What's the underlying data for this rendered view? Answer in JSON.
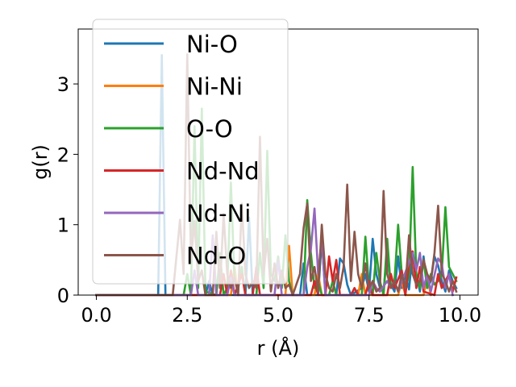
{
  "chart_data": {
    "type": "line",
    "xlabel": "r (Å)",
    "ylabel": "g(r)",
    "xlim": [
      -0.5,
      10.5
    ],
    "ylim": [
      0,
      3.78
    ],
    "xticks": [
      0.0,
      2.5,
      5.0,
      7.5,
      10.0
    ],
    "xtick_labels": [
      "0.0",
      "2.5",
      "5.0",
      "7.5",
      "10.0"
    ],
    "yticks": [
      0,
      1,
      2,
      3
    ],
    "ytick_labels": [
      "0",
      "1",
      "2",
      "3"
    ],
    "grid": false,
    "legend_position": "top-left",
    "series": [
      {
        "name": "Ni-O",
        "color": "#1f77b4",
        "points": [
          [
            0.0,
            0
          ],
          [
            1.7,
            0
          ],
          [
            1.8,
            3.41
          ],
          [
            1.9,
            0
          ],
          [
            3.0,
            0
          ],
          [
            3.1,
            0.2
          ],
          [
            3.2,
            0
          ],
          [
            4.1,
            0
          ],
          [
            4.2,
            1.1
          ],
          [
            4.3,
            0
          ],
          [
            5.6,
            0
          ],
          [
            5.7,
            0.45
          ],
          [
            5.8,
            0
          ],
          [
            6.1,
            0
          ],
          [
            6.2,
            0.8
          ],
          [
            6.3,
            0
          ],
          [
            6.6,
            0
          ],
          [
            6.7,
            0.52
          ],
          [
            6.8,
            0.45
          ],
          [
            6.9,
            0.15
          ],
          [
            7.0,
            0
          ],
          [
            7.3,
            0.1
          ],
          [
            7.4,
            0.3
          ],
          [
            7.5,
            0.05
          ],
          [
            7.6,
            0.8
          ],
          [
            7.7,
            0.3
          ],
          [
            7.8,
            0.1
          ],
          [
            7.9,
            0.05
          ],
          [
            8.0,
            0.62
          ],
          [
            8.1,
            0.15
          ],
          [
            8.2,
            0.05
          ],
          [
            8.3,
            0.55
          ],
          [
            8.4,
            0.1
          ],
          [
            8.5,
            0.3
          ],
          [
            8.6,
            0.08
          ],
          [
            8.7,
            0.62
          ],
          [
            8.8,
            0.3
          ],
          [
            8.9,
            0.05
          ],
          [
            9.0,
            0.55
          ],
          [
            9.1,
            0.1
          ],
          [
            9.2,
            0.2
          ],
          [
            9.3,
            0.55
          ],
          [
            9.4,
            0.42
          ],
          [
            9.5,
            0.2
          ],
          [
            9.6,
            0.05
          ],
          [
            9.7,
            0.35
          ],
          [
            9.8,
            0.2
          ],
          [
            9.9,
            0.1
          ]
        ]
      },
      {
        "name": "Ni-Ni",
        "color": "#ff7f0e",
        "points": [
          [
            0.0,
            0
          ],
          [
            3.7,
            0
          ],
          [
            3.8,
            0.4
          ],
          [
            3.9,
            0
          ],
          [
            5.2,
            0
          ],
          [
            5.3,
            0.7
          ],
          [
            5.4,
            0
          ],
          [
            6.0,
            0
          ],
          [
            6.1,
            0.3
          ],
          [
            6.2,
            0
          ],
          [
            7.2,
            0
          ],
          [
            7.3,
            0.3
          ],
          [
            7.4,
            0
          ],
          [
            8.3,
            0
          ],
          [
            8.4,
            0.2
          ],
          [
            8.5,
            0
          ],
          [
            9.0,
            0
          ],
          [
            9.1,
            0.25
          ],
          [
            9.2,
            0
          ]
        ]
      },
      {
        "name": "O-O",
        "color": "#2ca02c",
        "points": [
          [
            0.0,
            0
          ],
          [
            2.4,
            0
          ],
          [
            2.5,
            0.3
          ],
          [
            2.6,
            0
          ],
          [
            2.7,
            2.4
          ],
          [
            2.8,
            0.1
          ],
          [
            2.9,
            2.65
          ],
          [
            3.0,
            0.05
          ],
          [
            3.3,
            0
          ],
          [
            3.4,
            0.6
          ],
          [
            3.5,
            0
          ],
          [
            3.6,
            0.1
          ],
          [
            3.7,
            1.6
          ],
          [
            3.8,
            0.2
          ],
          [
            3.9,
            0.1
          ],
          [
            4.0,
            0.4
          ],
          [
            4.1,
            0
          ],
          [
            4.4,
            0
          ],
          [
            4.5,
            0.6
          ],
          [
            4.6,
            0.1
          ],
          [
            4.7,
            2.05
          ],
          [
            4.8,
            0.3
          ],
          [
            4.9,
            0.2
          ],
          [
            5.0,
            0.55
          ],
          [
            5.1,
            0.1
          ],
          [
            5.2,
            0.85
          ],
          [
            5.3,
            0.2
          ],
          [
            5.4,
            0
          ],
          [
            5.7,
            0
          ],
          [
            5.8,
            1.35
          ],
          [
            5.9,
            0.6
          ],
          [
            6.0,
            0.1
          ],
          [
            6.1,
            0.2
          ],
          [
            6.2,
            0
          ],
          [
            6.4,
            0
          ],
          [
            6.5,
            0.2
          ],
          [
            6.6,
            0
          ],
          [
            7.3,
            0
          ],
          [
            7.4,
            0.83
          ],
          [
            7.5,
            0.1
          ],
          [
            7.6,
            0
          ],
          [
            7.7,
            0.6
          ],
          [
            7.8,
            0.2
          ],
          [
            7.9,
            0
          ],
          [
            8.0,
            0.8
          ],
          [
            8.1,
            0.1
          ],
          [
            8.2,
            0.2
          ],
          [
            8.3,
            1.0
          ],
          [
            8.4,
            0.3
          ],
          [
            8.5,
            0.05
          ],
          [
            8.6,
            0.3
          ],
          [
            8.7,
            1.82
          ],
          [
            8.8,
            0.3
          ],
          [
            8.9,
            0.1
          ],
          [
            9.0,
            0.5
          ],
          [
            9.1,
            0.1
          ],
          [
            9.2,
            0.3
          ],
          [
            9.3,
            0.15
          ],
          [
            9.4,
            0.2
          ],
          [
            9.5,
            0.3
          ],
          [
            9.6,
            1.25
          ],
          [
            9.7,
            0.4
          ],
          [
            9.8,
            0.3
          ],
          [
            9.9,
            0.2
          ]
        ]
      },
      {
        "name": "Nd-Nd",
        "color": "#d62728",
        "points": [
          [
            0.0,
            0
          ],
          [
            3.4,
            0
          ],
          [
            3.5,
            0.3
          ],
          [
            3.6,
            0
          ],
          [
            3.7,
            0.35
          ],
          [
            3.8,
            0
          ],
          [
            4.0,
            0.3
          ],
          [
            4.1,
            0
          ],
          [
            4.3,
            0
          ],
          [
            4.4,
            0.4
          ],
          [
            4.5,
            0
          ],
          [
            5.9,
            0
          ],
          [
            6.0,
            0.2
          ],
          [
            6.1,
            0
          ],
          [
            6.3,
            0
          ],
          [
            6.4,
            0.55
          ],
          [
            6.5,
            0.2
          ],
          [
            6.6,
            0.5
          ],
          [
            6.7,
            0
          ],
          [
            7.0,
            0
          ],
          [
            7.1,
            0.1
          ],
          [
            7.2,
            0
          ],
          [
            7.4,
            0
          ],
          [
            7.5,
            0.2
          ],
          [
            7.6,
            0
          ],
          [
            8.0,
            0
          ],
          [
            8.1,
            0.3
          ],
          [
            8.2,
            0.1
          ],
          [
            8.4,
            0.35
          ],
          [
            8.5,
            0
          ],
          [
            8.6,
            0.45
          ],
          [
            8.7,
            0.62
          ],
          [
            8.8,
            0.1
          ],
          [
            8.9,
            0.4
          ],
          [
            9.0,
            0.05
          ],
          [
            9.3,
            0
          ],
          [
            9.4,
            0.3
          ],
          [
            9.5,
            0.1
          ],
          [
            9.7,
            0.3
          ],
          [
            9.8,
            0.05
          ],
          [
            9.9,
            0.25
          ]
        ]
      },
      {
        "name": "Nd-Ni",
        "color": "#9467bd",
        "points": [
          [
            0.0,
            0
          ],
          [
            2.6,
            0
          ],
          [
            2.7,
            0.35
          ],
          [
            2.8,
            0
          ],
          [
            3.1,
            0
          ],
          [
            3.2,
            0.85
          ],
          [
            3.3,
            0
          ],
          [
            3.6,
            0
          ],
          [
            3.7,
            0.25
          ],
          [
            3.8,
            0
          ],
          [
            4.9,
            0
          ],
          [
            5.0,
            0.5
          ],
          [
            5.1,
            0
          ],
          [
            5.7,
            0
          ],
          [
            5.8,
            0.4
          ],
          [
            5.9,
            0.65
          ],
          [
            6.0,
            1.23
          ],
          [
            6.1,
            0.3
          ],
          [
            6.2,
            0.8
          ],
          [
            6.3,
            0
          ],
          [
            7.5,
            0
          ],
          [
            7.6,
            0.2
          ],
          [
            7.7,
            0.1
          ],
          [
            7.8,
            0.05
          ],
          [
            8.0,
            0.2
          ],
          [
            8.1,
            0.1
          ],
          [
            8.2,
            0.2
          ],
          [
            8.3,
            0.05
          ],
          [
            8.7,
            0.6
          ],
          [
            8.8,
            0.35
          ],
          [
            8.9,
            0.6
          ],
          [
            9.0,
            0.1
          ],
          [
            9.1,
            0.3
          ],
          [
            9.2,
            0.05
          ],
          [
            9.4,
            0.52
          ],
          [
            9.5,
            0.45
          ],
          [
            9.6,
            0.1
          ],
          [
            9.7,
            0.3
          ],
          [
            9.8,
            0
          ]
        ]
      },
      {
        "name": "Nd-O",
        "color": "#8c564b",
        "points": [
          [
            0.0,
            0
          ],
          [
            2.1,
            0
          ],
          [
            2.3,
            1.07
          ],
          [
            2.4,
            0.3
          ],
          [
            2.5,
            3.42
          ],
          [
            2.6,
            0.5
          ],
          [
            2.7,
            1.05
          ],
          [
            2.8,
            0.2
          ],
          [
            2.9,
            0.35
          ],
          [
            3.0,
            0
          ],
          [
            3.2,
            0
          ],
          [
            3.3,
            0.9
          ],
          [
            3.4,
            0.1
          ],
          [
            3.5,
            1.15
          ],
          [
            3.6,
            0.3
          ],
          [
            3.7,
            0.1
          ],
          [
            3.8,
            0.25
          ],
          [
            3.9,
            0
          ],
          [
            4.0,
            1.3
          ],
          [
            4.1,
            0.3
          ],
          [
            4.2,
            0.1
          ],
          [
            4.3,
            0.2
          ],
          [
            4.4,
            0.1
          ],
          [
            4.5,
            2.25
          ],
          [
            4.6,
            0.3
          ],
          [
            4.7,
            0.8
          ],
          [
            4.8,
            0.05
          ],
          [
            4.9,
            0.45
          ],
          [
            5.0,
            0.1
          ],
          [
            5.1,
            0.35
          ],
          [
            5.2,
            0.1
          ],
          [
            5.3,
            0.15
          ],
          [
            5.4,
            0
          ],
          [
            5.6,
            0.3
          ],
          [
            5.7,
            0.95
          ],
          [
            5.8,
            1.3
          ],
          [
            5.9,
            0.2
          ],
          [
            6.0,
            0.4
          ],
          [
            6.1,
            0.05
          ],
          [
            6.2,
            1.0
          ],
          [
            6.3,
            0.3
          ],
          [
            6.4,
            0.1
          ],
          [
            6.5,
            0.05
          ],
          [
            6.6,
            0.3
          ],
          [
            6.7,
            0.1
          ],
          [
            6.8,
            0.4
          ],
          [
            6.9,
            1.57
          ],
          [
            7.0,
            0.2
          ],
          [
            7.1,
            0.9
          ],
          [
            7.2,
            0.3
          ],
          [
            7.3,
            0.1
          ],
          [
            7.4,
            0.45
          ],
          [
            7.5,
            0.1
          ],
          [
            7.6,
            0.2
          ],
          [
            7.7,
            0.05
          ],
          [
            7.8,
            0.1
          ],
          [
            7.9,
            1.48
          ],
          [
            8.0,
            0.3
          ],
          [
            8.1,
            0.1
          ],
          [
            8.2,
            0.2
          ],
          [
            8.3,
            0.05
          ],
          [
            8.4,
            0.3
          ],
          [
            8.5,
            0.1
          ],
          [
            8.6,
            0.85
          ],
          [
            8.7,
            0.3
          ],
          [
            8.8,
            0.15
          ],
          [
            8.9,
            0.2
          ],
          [
            9.0,
            0.5
          ],
          [
            9.1,
            0.3
          ],
          [
            9.2,
            0.2
          ],
          [
            9.3,
            0.6
          ],
          [
            9.4,
            1.27
          ],
          [
            9.5,
            0.3
          ],
          [
            9.6,
            0.2
          ],
          [
            9.7,
            0.05
          ],
          [
            9.8,
            0.2
          ],
          [
            9.9,
            0.05
          ]
        ]
      }
    ]
  }
}
